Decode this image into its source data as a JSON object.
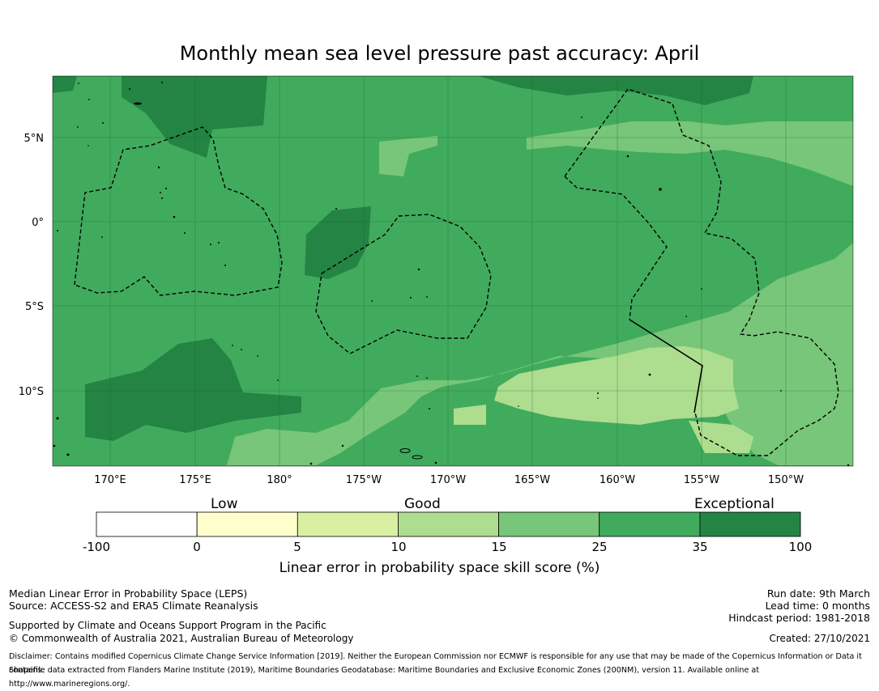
{
  "title": "Monthly mean sea level pressure past accuracy: April",
  "axes": {
    "lat_labels": [
      "5°N",
      "0°",
      "5°S",
      "10°S"
    ],
    "lon_labels": [
      "170°E",
      "175°E",
      "180°",
      "175°W",
      "170°W",
      "165°W",
      "160°W",
      "155°W",
      "150°W"
    ]
  },
  "colorbar": {
    "category_labels": [
      "Low",
      "Good",
      "Exceptional"
    ],
    "ticks": [
      "-100",
      "0",
      "5",
      "10",
      "15",
      "25",
      "35",
      "100"
    ],
    "colors": [
      "#ffffff",
      "#ffffcc",
      "#d9f0a3",
      "#addd8e",
      "#78c679",
      "#41ab5d",
      "#238443"
    ],
    "title": "Linear error in probability space skill score (%)"
  },
  "footer": {
    "line1": "Median Linear Error in Probability Space (LEPS)",
    "line2": "Source: ACCESS-S2 and ERA5 Climate Reanalysis",
    "line3": "Supported by Climate and Oceans Support Program in the Pacific",
    "line4": "© Commonwealth of Australia 2021, Australian Bureau of Meteorology",
    "run_date": "Run date: 9th March",
    "lead_time": "Lead time: 0 months",
    "hindcast": "Hindcast period: 1981-2018",
    "created": "Created: 27/10/2021",
    "disclaimer": "Disclaimer: Contains modified Copernicus Climate Change Service Information [2019]. Neither the European Commission nor ECMWF is responsible for any use that may be made of the Copernicus Information or Data it contains.",
    "shapefile": "Shapefile data extracted from Flanders Marine Institute (2019), Maritime Boundaries Geodatabase: Maritime Boundaries and Exclusive Economic Zones (200NM), version 11. Available online at http://www.marineregions.org/."
  }
}
